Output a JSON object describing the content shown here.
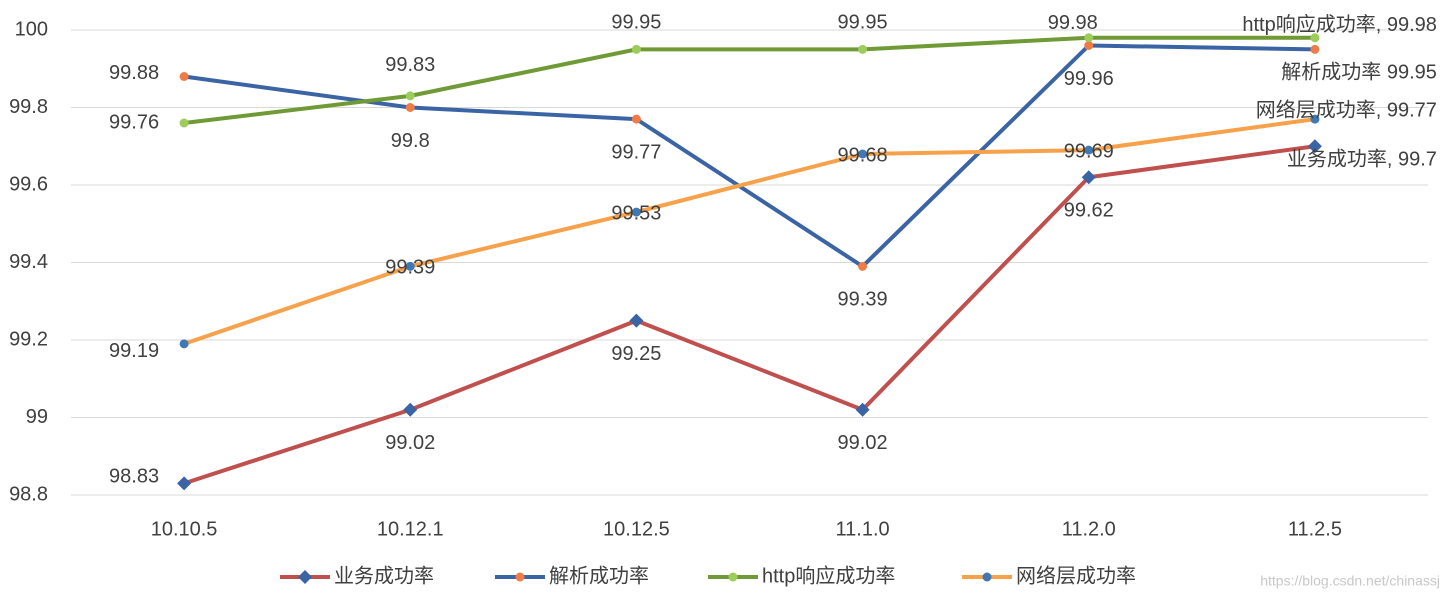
{
  "chart_data": {
    "type": "line",
    "categories": [
      "10.10.5",
      "10.12.1",
      "10.12.5",
      "11.1.0",
      "11.2.0",
      "11.2.5"
    ],
    "ylim": [
      98.8,
      100
    ],
    "yticks": [
      98.8,
      99,
      99.2,
      99.4,
      99.6,
      99.8,
      100
    ],
    "grid": true,
    "legend": "bottom",
    "watermark": "https://blog.csdn.net/chinassj",
    "series": [
      {
        "name": "业务成功率",
        "color": "#c0504d",
        "marker": "diamond",
        "marker_color": "#3a64a4",
        "values": [
          98.83,
          99.02,
          99.25,
          99.02,
          99.62,
          99.7
        ],
        "value_labels": [
          "98.83",
          "99.02",
          "99.25",
          "99.02",
          "99.62",
          "业务成功率, 99.7"
        ]
      },
      {
        "name": "解析成功率",
        "color": "#3a64a4",
        "marker": "circle",
        "marker_color": "#ef7b45",
        "values": [
          99.88,
          99.8,
          99.77,
          99.39,
          99.96,
          99.95
        ],
        "value_labels": [
          "99.88",
          "99.8",
          "99.77",
          "99.39",
          "99.96",
          "解析成功率 99.95"
        ]
      },
      {
        "name": "http响应成功率",
        "color": "#6f9a35",
        "marker": "circle",
        "marker_color": "#9ccc5a",
        "values": [
          99.76,
          99.83,
          99.95,
          99.95,
          99.98,
          99.98
        ],
        "value_labels": [
          "99.76",
          "99.83",
          "99.95",
          "99.95",
          "99.98",
          "http响应成功率, 99.98"
        ]
      },
      {
        "name": "网络层成功率",
        "color": "#f8a14b",
        "marker": "circle",
        "marker_color": "#3f78b5",
        "values": [
          99.19,
          99.39,
          99.53,
          99.68,
          99.69,
          99.77
        ],
        "value_labels": [
          "99.19",
          "99.39",
          "99.53",
          "99.68",
          "99.69",
          "网络层成功率, 99.77"
        ]
      }
    ]
  }
}
